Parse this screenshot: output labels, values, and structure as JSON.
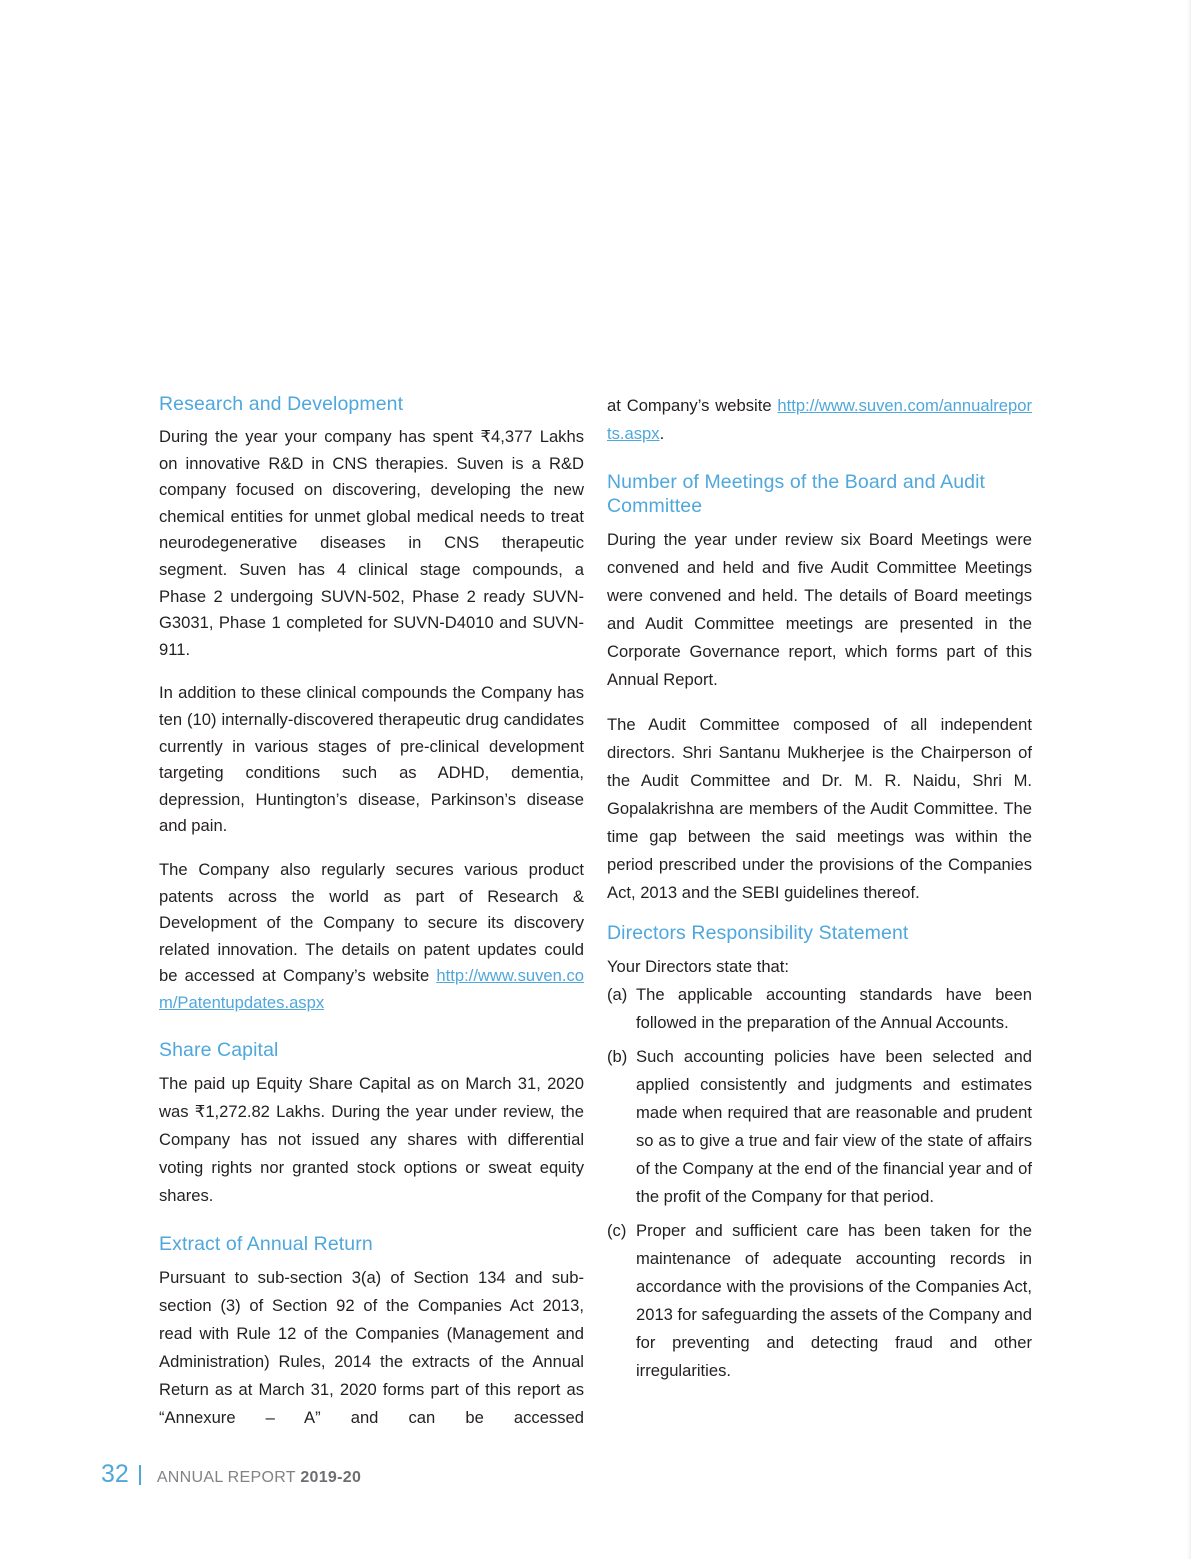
{
  "left": {
    "rd_heading": "Research and Development",
    "rd_p1": "During the year your company has spent ₹4,377 Lakhs on innovative R&D in CNS therapies. Suven is a R&D company focused on discovering, developing the new chemical entities for unmet global medical needs to treat neurodegenerative diseases in CNS therapeutic segment. Suven has 4 clinical stage compounds, a Phase 2 undergoing SUVN-502, Phase 2 ready SUVN-G3031, Phase 1 completed for SUVN-D4010 and SUVN-911.",
    "rd_p2": "In addition to these clinical compounds the Company has ten (10) internally-discovered therapeutic drug candidates currently in various stages of pre-clinical development targeting conditions such as ADHD, dementia, depression, Huntington’s disease, Parkinson’s disease and pain.",
    "rd_p3": "The Company also regularly secures various product patents across the world as part of Research & Development of the Company to secure its discovery related innovation. The details on patent updates could be accessed at Company’s website ",
    "rd_p3_link": "http://www.suven.com/Patentupdates.aspx",
    "sc_heading": "Share Capital",
    "sc_p1": "The paid up Equity Share Capital as on March 31, 2020 was ₹1,272.82 Lakhs. During the year under review, the Company has not issued any shares with differential voting rights nor granted stock options or sweat equity shares.",
    "ar_heading": "Extract of Annual Return",
    "ar_p1": "Pursuant to sub-section 3(a) of Section 134 and sub-section (3) of Section 92 of the Companies Act 2013, read with Rule 12 of the Companies (Management and Administration) Rules, 2014 the extracts of the Annual Return as at March 31, 2020 forms part of this report as “Annexure – A” and can be accessed"
  },
  "right": {
    "ar_cont": "at Company’s website ",
    "ar_link": "http://www.suven.com/annualreports.aspx",
    "ar_end": ".",
    "mt_heading": "Number of Meetings of the Board and Audit Committee",
    "mt_p1": "During the year under review six Board Meetings were convened and held and five Audit Committee Meetings were convened and held. The details of Board meetings and Audit Committee meetings are presented in the Corporate Governance report, which forms part of this Annual Report.",
    "mt_p2": "The Audit Committee composed of all independent directors. Shri Santanu Mukherjee is the Chairperson of the Audit Committee and Dr. M. R. Naidu, Shri M. Gopalakrishna are members of the Audit Committee. The time gap between the said meetings was within the period prescribed under the provisions of the Companies Act, 2013 and the SEBI guidelines thereof.",
    "drs_heading": "Directors Responsibility Statement",
    "drs_intro": "Your Directors state that:",
    "items": [
      {
        "label": "(a)",
        "text": "The applicable accounting standards have been followed in the preparation of the Annual Accounts."
      },
      {
        "label": "(b)",
        "text": "Such accounting policies have been selected and applied consistently and judgments and estimates made when required that are reasonable and prudent so as to give a true and fair view of the state of affairs of the Company at the end of the financial year and of the profit of the Company for that period."
      },
      {
        "label": "(c)",
        "text": "Proper and sufficient care has been taken for the maintenance of adequate accounting records in accordance with the provisions of the Companies Act, 2013 for safeguarding the assets of the Company and for preventing and detecting fraud and other irregularities."
      }
    ]
  },
  "footer": {
    "page_number": "32",
    "report_label": "ANNUAL REPORT",
    "year": "2019-20"
  },
  "colors": {
    "accent": "#4fa7dc",
    "text": "#231f20",
    "footer_text": "#808285"
  }
}
